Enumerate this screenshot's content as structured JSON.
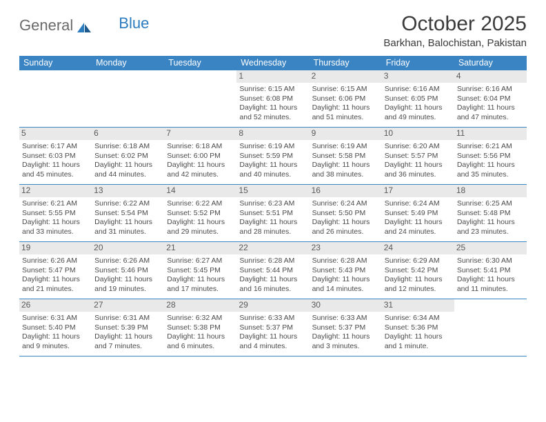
{
  "logo": {
    "general": "General",
    "blue": "Blue"
  },
  "header": {
    "title": "October 2025",
    "location": "Barkhan, Balochistan, Pakistan"
  },
  "colors": {
    "header_bg": "#3b84c4",
    "header_text": "#ffffff",
    "daynum_bg": "#e9e9e9",
    "border": "#3b84c4",
    "body_text": "#4a4a4a",
    "logo_gray": "#6a6a6a",
    "logo_blue": "#2b7bbf"
  },
  "day_labels": [
    "Sunday",
    "Monday",
    "Tuesday",
    "Wednesday",
    "Thursday",
    "Friday",
    "Saturday"
  ],
  "weeks": [
    [
      {
        "n": "",
        "sr": "",
        "ss": "",
        "dl": ""
      },
      {
        "n": "",
        "sr": "",
        "ss": "",
        "dl": ""
      },
      {
        "n": "",
        "sr": "",
        "ss": "",
        "dl": ""
      },
      {
        "n": "1",
        "sr": "Sunrise: 6:15 AM",
        "ss": "Sunset: 6:08 PM",
        "dl": "Daylight: 11 hours and 52 minutes."
      },
      {
        "n": "2",
        "sr": "Sunrise: 6:15 AM",
        "ss": "Sunset: 6:06 PM",
        "dl": "Daylight: 11 hours and 51 minutes."
      },
      {
        "n": "3",
        "sr": "Sunrise: 6:16 AM",
        "ss": "Sunset: 6:05 PM",
        "dl": "Daylight: 11 hours and 49 minutes."
      },
      {
        "n": "4",
        "sr": "Sunrise: 6:16 AM",
        "ss": "Sunset: 6:04 PM",
        "dl": "Daylight: 11 hours and 47 minutes."
      }
    ],
    [
      {
        "n": "5",
        "sr": "Sunrise: 6:17 AM",
        "ss": "Sunset: 6:03 PM",
        "dl": "Daylight: 11 hours and 45 minutes."
      },
      {
        "n": "6",
        "sr": "Sunrise: 6:18 AM",
        "ss": "Sunset: 6:02 PM",
        "dl": "Daylight: 11 hours and 44 minutes."
      },
      {
        "n": "7",
        "sr": "Sunrise: 6:18 AM",
        "ss": "Sunset: 6:00 PM",
        "dl": "Daylight: 11 hours and 42 minutes."
      },
      {
        "n": "8",
        "sr": "Sunrise: 6:19 AM",
        "ss": "Sunset: 5:59 PM",
        "dl": "Daylight: 11 hours and 40 minutes."
      },
      {
        "n": "9",
        "sr": "Sunrise: 6:19 AM",
        "ss": "Sunset: 5:58 PM",
        "dl": "Daylight: 11 hours and 38 minutes."
      },
      {
        "n": "10",
        "sr": "Sunrise: 6:20 AM",
        "ss": "Sunset: 5:57 PM",
        "dl": "Daylight: 11 hours and 36 minutes."
      },
      {
        "n": "11",
        "sr": "Sunrise: 6:21 AM",
        "ss": "Sunset: 5:56 PM",
        "dl": "Daylight: 11 hours and 35 minutes."
      }
    ],
    [
      {
        "n": "12",
        "sr": "Sunrise: 6:21 AM",
        "ss": "Sunset: 5:55 PM",
        "dl": "Daylight: 11 hours and 33 minutes."
      },
      {
        "n": "13",
        "sr": "Sunrise: 6:22 AM",
        "ss": "Sunset: 5:54 PM",
        "dl": "Daylight: 11 hours and 31 minutes."
      },
      {
        "n": "14",
        "sr": "Sunrise: 6:22 AM",
        "ss": "Sunset: 5:52 PM",
        "dl": "Daylight: 11 hours and 29 minutes."
      },
      {
        "n": "15",
        "sr": "Sunrise: 6:23 AM",
        "ss": "Sunset: 5:51 PM",
        "dl": "Daylight: 11 hours and 28 minutes."
      },
      {
        "n": "16",
        "sr": "Sunrise: 6:24 AM",
        "ss": "Sunset: 5:50 PM",
        "dl": "Daylight: 11 hours and 26 minutes."
      },
      {
        "n": "17",
        "sr": "Sunrise: 6:24 AM",
        "ss": "Sunset: 5:49 PM",
        "dl": "Daylight: 11 hours and 24 minutes."
      },
      {
        "n": "18",
        "sr": "Sunrise: 6:25 AM",
        "ss": "Sunset: 5:48 PM",
        "dl": "Daylight: 11 hours and 23 minutes."
      }
    ],
    [
      {
        "n": "19",
        "sr": "Sunrise: 6:26 AM",
        "ss": "Sunset: 5:47 PM",
        "dl": "Daylight: 11 hours and 21 minutes."
      },
      {
        "n": "20",
        "sr": "Sunrise: 6:26 AM",
        "ss": "Sunset: 5:46 PM",
        "dl": "Daylight: 11 hours and 19 minutes."
      },
      {
        "n": "21",
        "sr": "Sunrise: 6:27 AM",
        "ss": "Sunset: 5:45 PM",
        "dl": "Daylight: 11 hours and 17 minutes."
      },
      {
        "n": "22",
        "sr": "Sunrise: 6:28 AM",
        "ss": "Sunset: 5:44 PM",
        "dl": "Daylight: 11 hours and 16 minutes."
      },
      {
        "n": "23",
        "sr": "Sunrise: 6:28 AM",
        "ss": "Sunset: 5:43 PM",
        "dl": "Daylight: 11 hours and 14 minutes."
      },
      {
        "n": "24",
        "sr": "Sunrise: 6:29 AM",
        "ss": "Sunset: 5:42 PM",
        "dl": "Daylight: 11 hours and 12 minutes."
      },
      {
        "n": "25",
        "sr": "Sunrise: 6:30 AM",
        "ss": "Sunset: 5:41 PM",
        "dl": "Daylight: 11 hours and 11 minutes."
      }
    ],
    [
      {
        "n": "26",
        "sr": "Sunrise: 6:31 AM",
        "ss": "Sunset: 5:40 PM",
        "dl": "Daylight: 11 hours and 9 minutes."
      },
      {
        "n": "27",
        "sr": "Sunrise: 6:31 AM",
        "ss": "Sunset: 5:39 PM",
        "dl": "Daylight: 11 hours and 7 minutes."
      },
      {
        "n": "28",
        "sr": "Sunrise: 6:32 AM",
        "ss": "Sunset: 5:38 PM",
        "dl": "Daylight: 11 hours and 6 minutes."
      },
      {
        "n": "29",
        "sr": "Sunrise: 6:33 AM",
        "ss": "Sunset: 5:37 PM",
        "dl": "Daylight: 11 hours and 4 minutes."
      },
      {
        "n": "30",
        "sr": "Sunrise: 6:33 AM",
        "ss": "Sunset: 5:37 PM",
        "dl": "Daylight: 11 hours and 3 minutes."
      },
      {
        "n": "31",
        "sr": "Sunrise: 6:34 AM",
        "ss": "Sunset: 5:36 PM",
        "dl": "Daylight: 11 hours and 1 minute."
      },
      {
        "n": "",
        "sr": "",
        "ss": "",
        "dl": ""
      }
    ]
  ]
}
